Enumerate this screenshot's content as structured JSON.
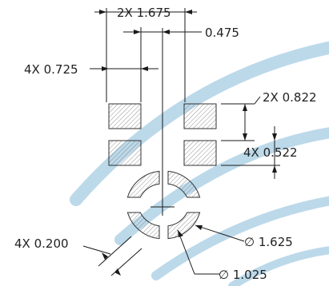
{
  "diagram": {
    "colors": {
      "background": "#ffffff",
      "watermark": "#bcd9ea",
      "ink": "#1a1a1a",
      "hatch": "#777777"
    },
    "dimensions": {
      "pad_pitch": "2X 1.675",
      "center_offset": "0.475",
      "pad_width": "4X 0.725",
      "pad_pitch_vertical": "2X 0.822",
      "pad_height": "4X 0.522",
      "ring_gap": "4X 0.200",
      "outer_diameter": "∅ 1.625",
      "inner_diameter": "∅ 1.025"
    }
  }
}
